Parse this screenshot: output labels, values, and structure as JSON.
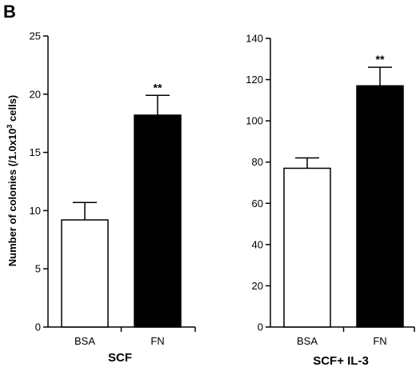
{
  "panel_letter": "B",
  "ylabel_prefix": "Number of colonies (/1.0x10",
  "ylabel_sup": "3",
  "ylabel_suffix": " cells)",
  "chart_data": [
    {
      "type": "bar",
      "title": "SCF",
      "categories": [
        "BSA",
        "FN"
      ],
      "values": [
        9.2,
        18.2
      ],
      "errors": [
        1.5,
        1.7
      ],
      "fills": [
        "#ffffff",
        "#000000"
      ],
      "annotations": [
        "",
        "**"
      ],
      "ylim": [
        0,
        25
      ],
      "yticks": [
        0,
        5,
        10,
        15,
        20,
        25
      ]
    },
    {
      "type": "bar",
      "title": "SCF+ IL-3",
      "categories": [
        "BSA",
        "FN"
      ],
      "values": [
        77,
        117
      ],
      "errors": [
        5,
        9
      ],
      "fills": [
        "#ffffff",
        "#000000"
      ],
      "annotations": [
        "",
        "**"
      ],
      "ylim": [
        0,
        140
      ],
      "yticks": [
        0,
        20,
        40,
        60,
        80,
        100,
        120,
        140
      ]
    }
  ]
}
